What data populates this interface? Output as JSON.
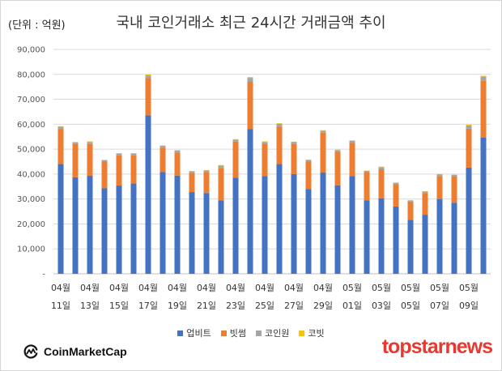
{
  "unit_label": "(단위 : 억원)",
  "title": "국내 코인거래소 최근 24시간 거래금액 추이",
  "chart_data": {
    "type": "bar",
    "stacked": true,
    "categories": [
      [
        "04월",
        "11일"
      ],
      [
        "04월",
        ""
      ],
      [
        "04월",
        "13일"
      ],
      [
        "04월",
        ""
      ],
      [
        "04월",
        "15일"
      ],
      [
        "04월",
        ""
      ],
      [
        "04월",
        "17일"
      ],
      [
        "04월",
        ""
      ],
      [
        "04월",
        "19일"
      ],
      [
        "04월",
        ""
      ],
      [
        "04월",
        "21일"
      ],
      [
        "04월",
        ""
      ],
      [
        "04월",
        "23일"
      ],
      [
        "04월",
        ""
      ],
      [
        "04월",
        "25일"
      ],
      [
        "04월",
        ""
      ],
      [
        "04월",
        "27일"
      ],
      [
        "04월",
        ""
      ],
      [
        "04월",
        "29일"
      ],
      [
        "04월",
        ""
      ],
      [
        "05월",
        "01일"
      ],
      [
        "05월",
        ""
      ],
      [
        "05월",
        "03일"
      ],
      [
        "05월",
        ""
      ],
      [
        "05월",
        "05일"
      ],
      [
        "05월",
        ""
      ],
      [
        "05월",
        "07일"
      ],
      [
        "05월",
        ""
      ],
      [
        "05월",
        "09일"
      ],
      [
        "05월",
        ""
      ]
    ],
    "visible_tick_labels": [
      "04월",
      "",
      "04월",
      "",
      "04월",
      "",
      "04월",
      "",
      "04월",
      "",
      "04월",
      "",
      "04월",
      "",
      "04월",
      "",
      "04월",
      "",
      "04월",
      "",
      "05월",
      "",
      "05월",
      "",
      "05월",
      "",
      "05월",
      "",
      "05월",
      ""
    ],
    "visible_date_labels": [
      "11일",
      "",
      "13일",
      "",
      "15일",
      "",
      "17일",
      "",
      "19일",
      "",
      "21일",
      "",
      "23일",
      "",
      "25일",
      "",
      "27일",
      "",
      "29일",
      "",
      "01일",
      "",
      "03일",
      "",
      "05일",
      "",
      "07일",
      "",
      "09일",
      ""
    ],
    "series": [
      {
        "name": "업비트",
        "color": "#4472c4",
        "values": [
          44000,
          38700,
          39300,
          34300,
          35400,
          36200,
          63500,
          40800,
          39400,
          32800,
          32400,
          29500,
          38600,
          58000,
          39200,
          44000,
          40000,
          34000,
          40600,
          35500,
          39200,
          29500,
          30300,
          27000,
          21700,
          23700,
          30000,
          28500,
          42600,
          54700
        ]
      },
      {
        "name": "빗썸",
        "color": "#ed7d31",
        "values": [
          14000,
          13300,
          12800,
          10700,
          12100,
          11300,
          15000,
          9800,
          9200,
          7700,
          8400,
          13000,
          14400,
          19000,
          13000,
          15000,
          12000,
          11000,
          16000,
          13400,
          13300,
          11300,
          11600,
          9000,
          7300,
          8700,
          9000,
          10500,
          15600,
          22700
        ]
      },
      {
        "name": "코인원",
        "color": "#a5a5a5",
        "values": [
          1000,
          700,
          800,
          600,
          700,
          700,
          1100,
          800,
          800,
          600,
          700,
          900,
          800,
          1600,
          700,
          1200,
          800,
          700,
          800,
          700,
          800,
          500,
          900,
          500,
          400,
          600,
          800,
          700,
          1300,
          1700
        ]
      },
      {
        "name": "코빗",
        "color": "#ffc000",
        "values": [
          200,
          200,
          200,
          100,
          200,
          200,
          300,
          100,
          200,
          100,
          100,
          200,
          200,
          300,
          200,
          200,
          200,
          100,
          200,
          200,
          200,
          100,
          200,
          100,
          100,
          100,
          200,
          100,
          300,
          300
        ]
      }
    ],
    "y_ticks": [
      "-",
      "10,000",
      "20,000",
      "30,000",
      "40,000",
      "50,000",
      "60,000",
      "70,000",
      "80,000",
      "90,000"
    ],
    "ylim": [
      0,
      90000
    ],
    "grid": true,
    "legend_position": "bottom"
  },
  "footer": {
    "source_logo_text": "CoinMarketCap",
    "watermark": "topstarnews"
  }
}
